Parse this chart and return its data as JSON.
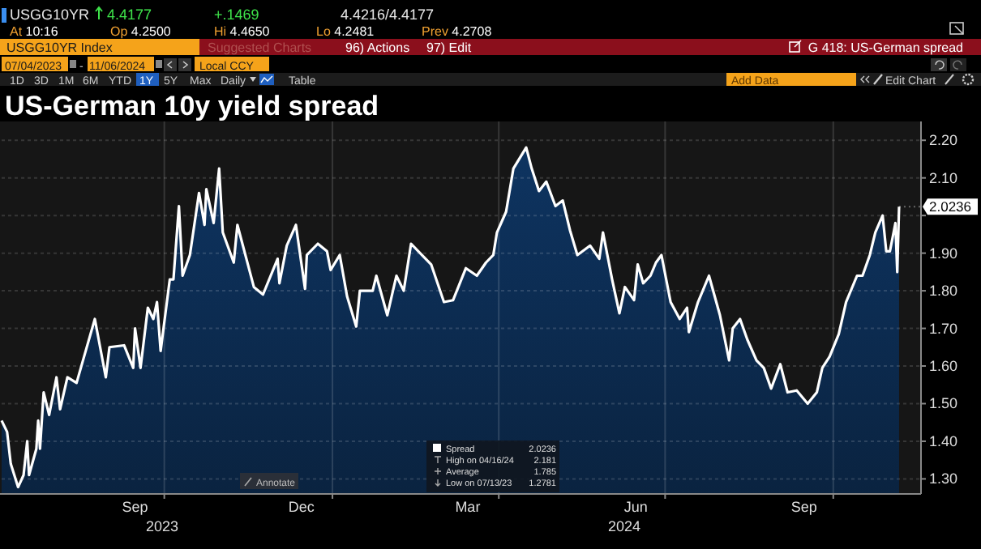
{
  "chart_data": {
    "type": "area",
    "title": "US-German 10y yield spread",
    "x": [
      "2023-07-04",
      "2023-07-07",
      "2023-07-09",
      "2023-07-13",
      "2023-07-16",
      "2023-07-18",
      "2023-07-19",
      "2023-07-23",
      "2023-07-24",
      "2023-07-25",
      "2023-07-27",
      "2023-07-30",
      "2023-08-03",
      "2023-08-05",
      "2023-08-09",
      "2023-08-14",
      "2023-08-19",
      "2023-08-24",
      "2023-08-30",
      "2023-09-01",
      "2023-09-09",
      "2023-09-14",
      "2023-09-15",
      "2023-09-18",
      "2023-09-22",
      "2023-09-25",
      "2023-09-27",
      "2023-09-29",
      "2023-10-04",
      "2023-10-06",
      "2023-10-09",
      "2023-10-11",
      "2023-10-15",
      "2023-10-20",
      "2023-10-23",
      "2023-10-24",
      "2023-10-28",
      "2023-10-31",
      "2023-11-02",
      "2023-11-08",
      "2023-11-10",
      "2023-11-19",
      "2023-11-24",
      "2023-12-02",
      "2023-12-03",
      "2023-12-07",
      "2023-12-12",
      "2023-12-17",
      "2023-12-18",
      "2023-12-24",
      "2023-12-29",
      "2023-12-31",
      "2024-01-05",
      "2024-01-09",
      "2024-01-14",
      "2024-01-16",
      "2024-01-23",
      "2024-01-25",
      "2024-01-31",
      "2024-02-05",
      "2024-02-09",
      "2024-02-13",
      "2024-02-20",
      "2024-02-24",
      "2024-03-02",
      "2024-03-07",
      "2024-03-14",
      "2024-03-20",
      "2024-03-25",
      "2024-03-29",
      "2024-03-31",
      "2024-04-05",
      "2024-04-09",
      "2024-04-16",
      "2024-04-19",
      "2024-04-23",
      "2024-04-27",
      "2024-05-02",
      "2024-05-06",
      "2024-05-10",
      "2024-05-14",
      "2024-05-21",
      "2024-05-26",
      "2024-05-28",
      "2024-06-02",
      "2024-06-06",
      "2024-06-09",
      "2024-06-14",
      "2024-06-16",
      "2024-06-19",
      "2024-06-23",
      "2024-06-26",
      "2024-06-29",
      "2024-07-04",
      "2024-07-09",
      "2024-07-13",
      "2024-07-14",
      "2024-07-19",
      "2024-07-25",
      "2024-07-31",
      "2024-08-05",
      "2024-08-07",
      "2024-08-11",
      "2024-08-15",
      "2024-08-20",
      "2024-08-24",
      "2024-08-28",
      "2024-09-02",
      "2024-09-06",
      "2024-09-11",
      "2024-09-17",
      "2024-09-22",
      "2024-09-25",
      "2024-09-29",
      "2024-10-04",
      "2024-10-08",
      "2024-10-14",
      "2024-10-17",
      "2024-10-21",
      "2024-10-24",
      "2024-10-28",
      "2024-10-30",
      "2024-11-01",
      "2024-11-04",
      "2024-11-05",
      "2024-11-06"
    ],
    "series": [
      {
        "name": "Spread",
        "color": "#ffffff",
        "values": [
          1.455,
          1.425,
          1.34,
          1.2781,
          1.31,
          1.4,
          1.31,
          1.38,
          1.455,
          1.38,
          1.53,
          1.47,
          1.57,
          1.485,
          1.57,
          1.555,
          1.64,
          1.725,
          1.57,
          1.65,
          1.655,
          1.595,
          1.7,
          1.595,
          1.755,
          1.725,
          1.77,
          1.64,
          1.83,
          1.83,
          2.025,
          1.84,
          1.895,
          2.06,
          1.975,
          2.07,
          1.98,
          2.125,
          1.955,
          1.875,
          1.975,
          1.81,
          1.79,
          1.885,
          1.82,
          1.92,
          1.975,
          1.805,
          1.895,
          1.925,
          1.905,
          1.855,
          1.895,
          1.785,
          1.705,
          1.8,
          1.8,
          1.84,
          1.735,
          1.84,
          1.8,
          1.925,
          1.89,
          1.87,
          1.77,
          1.775,
          1.86,
          1.84,
          1.875,
          1.895,
          1.955,
          2.01,
          2.125,
          2.181,
          2.125,
          2.065,
          2.09,
          2.025,
          2.04,
          1.96,
          1.895,
          1.92,
          1.885,
          1.955,
          1.83,
          1.74,
          1.81,
          1.775,
          1.87,
          1.82,
          1.84,
          1.875,
          1.895,
          1.77,
          1.725,
          1.755,
          1.69,
          1.77,
          1.84,
          1.735,
          1.615,
          1.7,
          1.725,
          1.67,
          1.615,
          1.595,
          1.54,
          1.605,
          1.53,
          1.535,
          1.5,
          1.53,
          1.595,
          1.625,
          1.685,
          1.77,
          1.84,
          1.84,
          1.895,
          1.955,
          2.0,
          1.905,
          1.905,
          1.98,
          1.85,
          2.0236
        ]
      }
    ],
    "xlim": [
      "2023-07-04",
      "2024-11-18"
    ],
    "xticks": [
      {
        "value": "2023-09-15",
        "label": "Sep"
      },
      {
        "value": "2023-12-15",
        "label": "Dec"
      },
      {
        "value": "2024-03-15",
        "label": "Mar"
      },
      {
        "value": "2024-06-15",
        "label": "Jun"
      },
      {
        "value": "2024-09-15",
        "label": "Sep"
      },
      {
        "value": "2023-10-01",
        "label": null
      },
      {
        "value": "2024-01-01",
        "label": null
      },
      {
        "value": "2024-04-01",
        "label": null
      },
      {
        "value": "2024-07-01",
        "label": null
      },
      {
        "value": "2024-10-01",
        "label": null
      }
    ],
    "ylim": [
      1.26,
      2.25
    ],
    "yticks": [
      {
        "value": 1.3,
        "label": "1.30"
      },
      {
        "value": 1.4,
        "label": "1.40"
      },
      {
        "value": 1.5,
        "label": "1.50"
      },
      {
        "value": 1.6,
        "label": "1.60"
      },
      {
        "value": 1.7,
        "label": "1.70"
      },
      {
        "value": 1.8,
        "label": "1.80"
      },
      {
        "value": 1.9,
        "label": "1.90"
      },
      {
        "value": 2.0,
        "label": null
      },
      {
        "value": 2.1,
        "label": "2.10"
      },
      {
        "value": 2.2,
        "label": "2.20"
      }
    ],
    "grid": true,
    "legend": "bottom",
    "annotations": [
      "USGG10YR",
      "4.4177",
      "+.1469",
      "4.4216/4.4177",
      "At 10:16",
      "Op 4.2500",
      "Hi 4.4650",
      "Lo 4.2481",
      "Prev 4.2708",
      "USGG10YR Index",
      "Suggested Charts",
      "96) Actions",
      "97) Edit",
      "G 418: US-German spread",
      "07/04/2023",
      "-",
      "11/06/2024",
      "Local CCY",
      "1D",
      "3D",
      "1M",
      "6M",
      "YTD",
      "1Y",
      "5Y",
      "Max",
      "Daily",
      "Table",
      "Add Data",
      "Edit Chart",
      "Annotate",
      "High on 04/16/24",
      "2.181",
      "Average",
      "1.785",
      "Low on 07/13/23",
      "1.2781",
      "2.0236",
      "2023",
      "2024",
      {
        "text": "2.0236",
        "x": "2024-11-06",
        "y": 2.0236
      }
    ]
  }
}
